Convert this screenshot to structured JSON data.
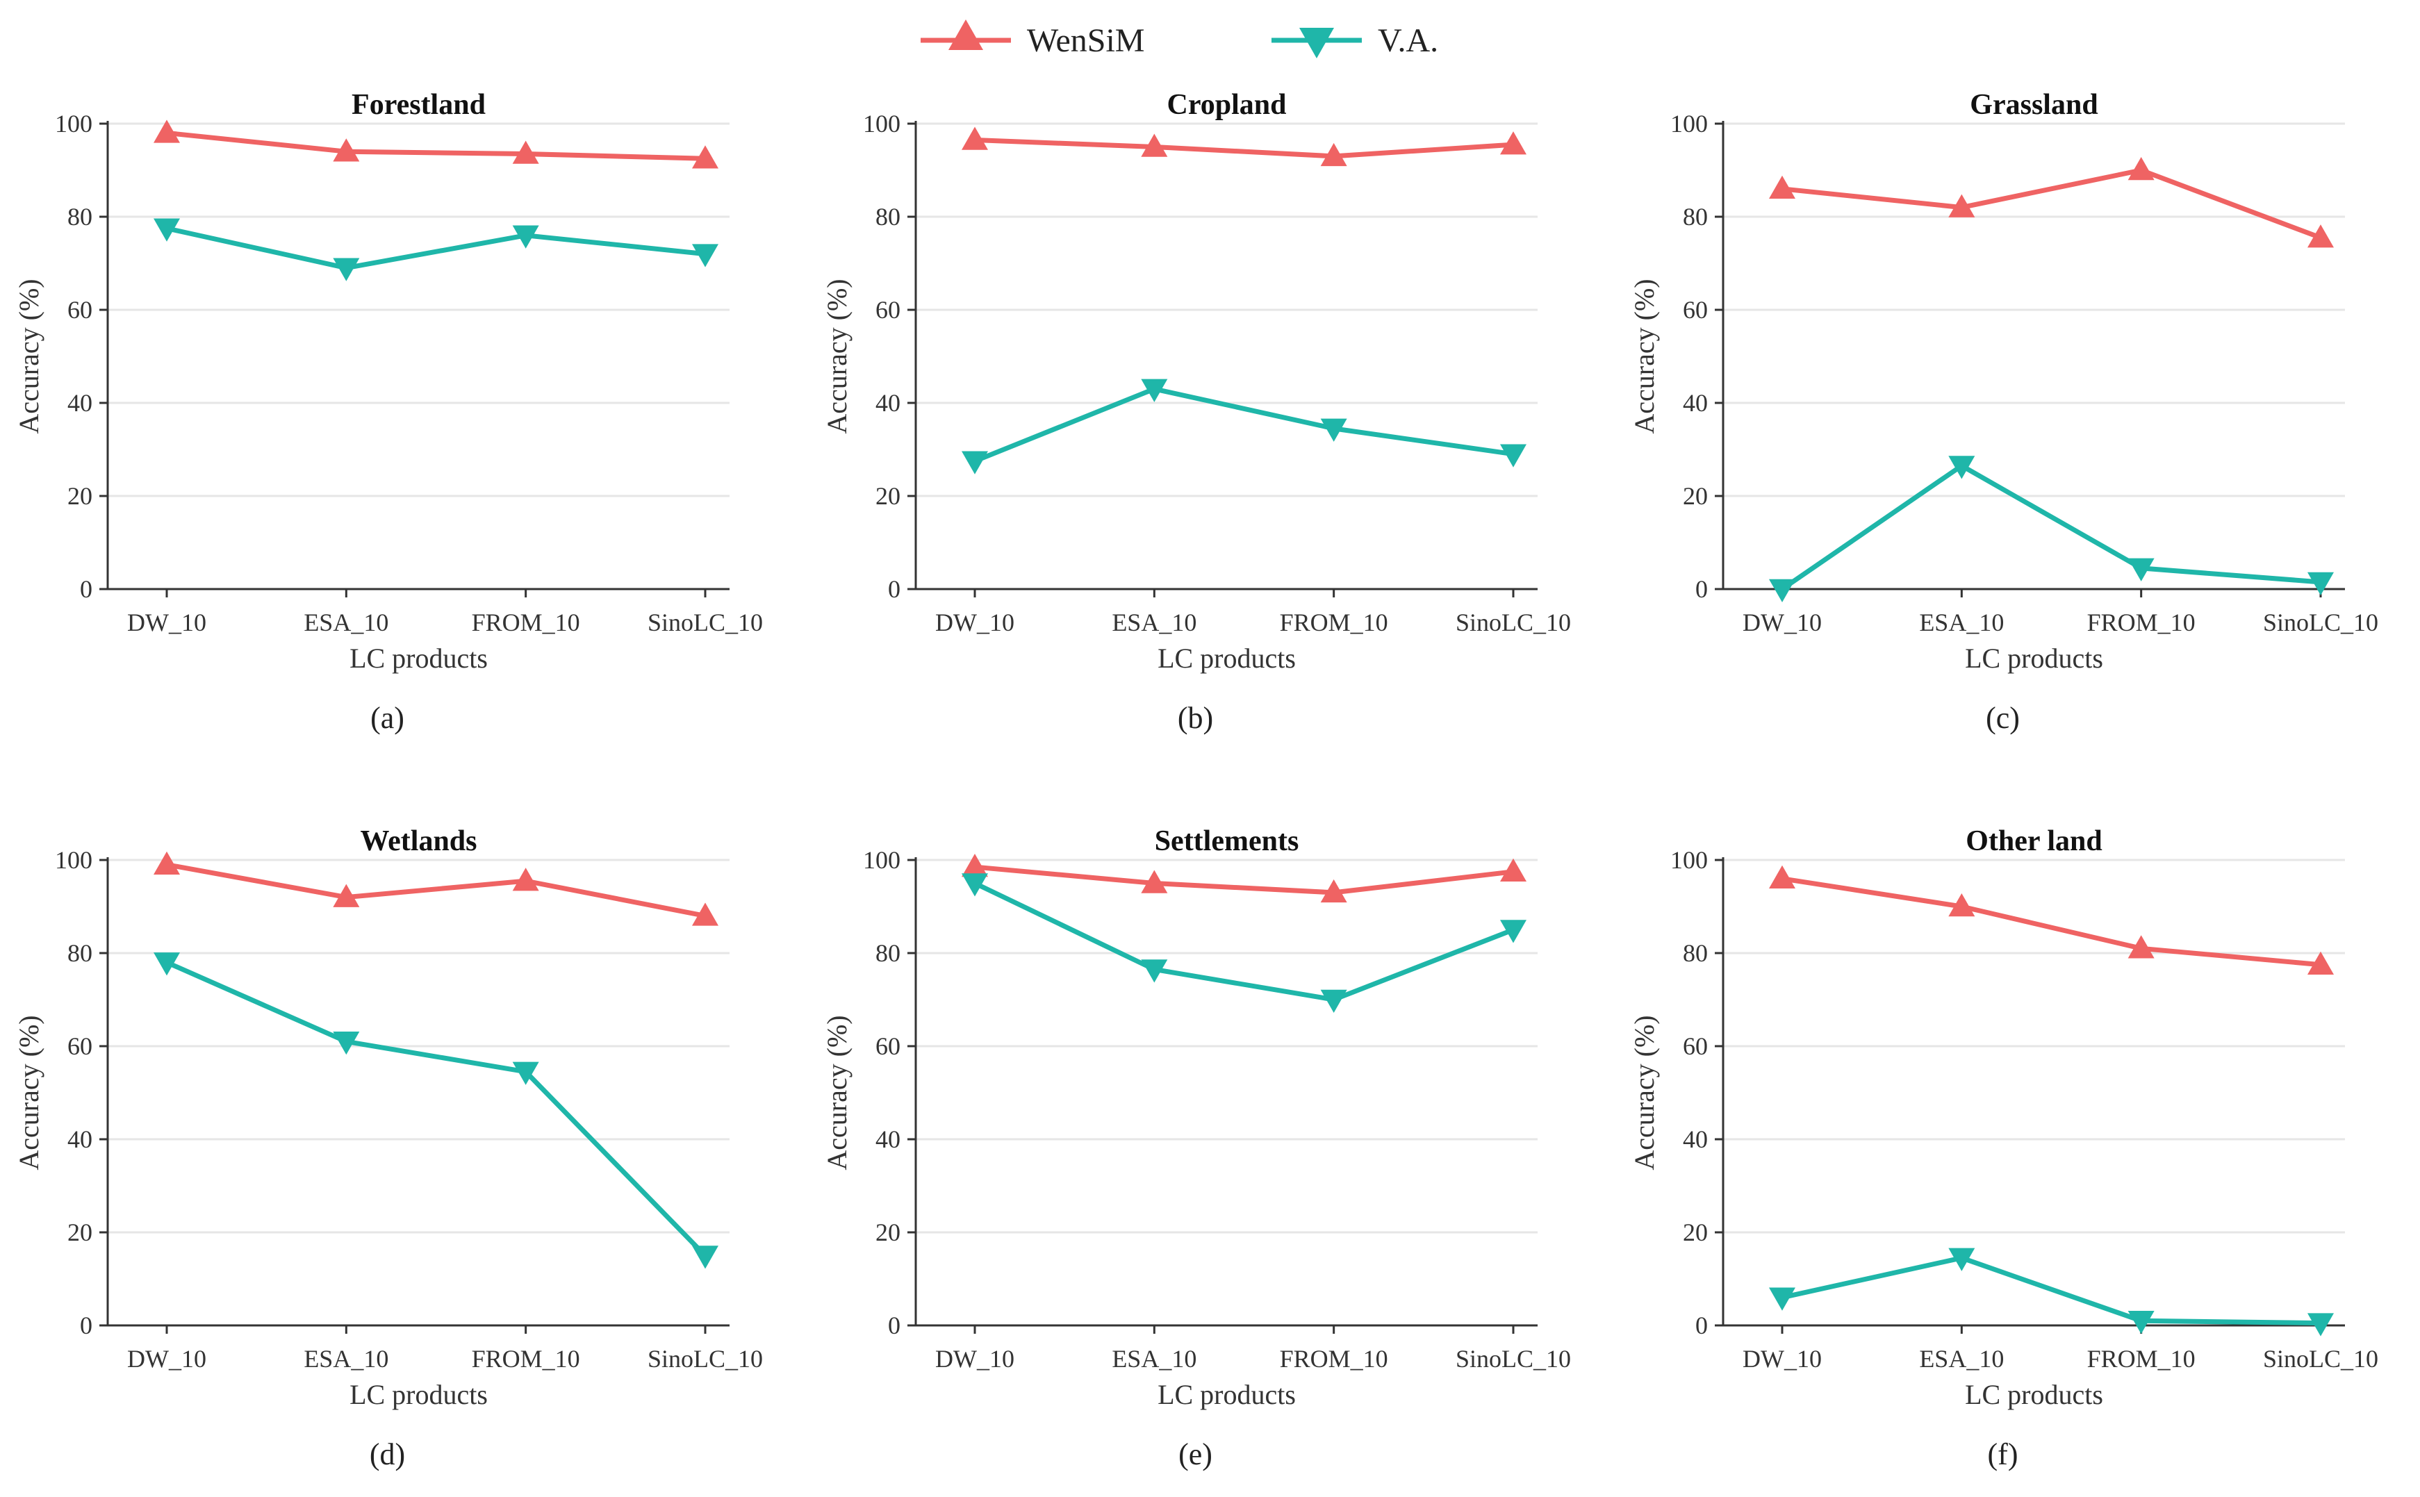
{
  "colors": {
    "wensim": "#EF6363",
    "va": "#1FB6A9"
  },
  "legend": {
    "wensim": "WenSiM",
    "va": "V.A."
  },
  "chart_data": [
    {
      "type": "line",
      "title": "Forestland",
      "caption": "(a)",
      "categories": [
        "DW_10",
        "ESA_10",
        "FROM_10",
        "SinoLC_10"
      ],
      "xlabel": "LC products",
      "ylabel": "Accuracy (%)",
      "ylim": [
        0,
        100
      ],
      "yticks": [
        "0",
        "20",
        "40",
        "60",
        "80",
        "100"
      ],
      "series": [
        {
          "name": "WenSiM",
          "values": [
            98,
            94,
            93.5,
            92.5
          ]
        },
        {
          "name": "V.A.",
          "values": [
            77.5,
            69,
            76,
            72
          ]
        }
      ]
    },
    {
      "type": "line",
      "title": "Cropland",
      "caption": "(b)",
      "categories": [
        "DW_10",
        "ESA_10",
        "FROM_10",
        "SinoLC_10"
      ],
      "xlabel": "LC products",
      "ylabel": "Accuracy (%)",
      "ylim": [
        0,
        100
      ],
      "yticks": [
        "0",
        "20",
        "40",
        "60",
        "80",
        "100"
      ],
      "series": [
        {
          "name": "WenSiM",
          "values": [
            96.5,
            95,
            93,
            95.5
          ]
        },
        {
          "name": "V.A.",
          "values": [
            27.5,
            43,
            34.5,
            29
          ]
        }
      ]
    },
    {
      "type": "line",
      "title": "Grassland",
      "caption": "(c)",
      "categories": [
        "DW_10",
        "ESA_10",
        "FROM_10",
        "SinoLC_10"
      ],
      "xlabel": "LC products",
      "ylabel": "Accuracy (%)",
      "ylim": [
        0,
        100
      ],
      "yticks": [
        "0",
        "20",
        "40",
        "60",
        "80",
        "100"
      ],
      "series": [
        {
          "name": "WenSiM",
          "values": [
            86,
            82,
            90,
            75.5
          ]
        },
        {
          "name": "V.A.",
          "values": [
            0,
            26.5,
            4.5,
            1.5
          ]
        }
      ]
    },
    {
      "type": "line",
      "title": "Wetlands",
      "caption": "(d)",
      "categories": [
        "DW_10",
        "ESA_10",
        "FROM_10",
        "SinoLC_10"
      ],
      "xlabel": "LC products",
      "ylabel": "Accuracy (%)",
      "ylim": [
        0,
        100
      ],
      "yticks": [
        "0",
        "20",
        "40",
        "60",
        "80",
        "100"
      ],
      "series": [
        {
          "name": "WenSiM",
          "values": [
            99,
            92,
            95.5,
            88
          ]
        },
        {
          "name": "V.A.",
          "values": [
            78,
            61,
            54.5,
            15
          ]
        }
      ]
    },
    {
      "type": "line",
      "title": "Settlements",
      "caption": "(e)",
      "categories": [
        "DW_10",
        "ESA_10",
        "FROM_10",
        "SinoLC_10"
      ],
      "xlabel": "LC products",
      "ylabel": "Accuracy (%)",
      "ylim": [
        0,
        100
      ],
      "yticks": [
        "0",
        "20",
        "40",
        "60",
        "80",
        "100"
      ],
      "series": [
        {
          "name": "WenSiM",
          "values": [
            98.5,
            95,
            93,
            97.5
          ]
        },
        {
          "name": "V.A.",
          "values": [
            95,
            76.5,
            70,
            85
          ]
        }
      ]
    },
    {
      "type": "line",
      "title": "Other land",
      "caption": "(f)",
      "categories": [
        "DW_10",
        "ESA_10",
        "FROM_10",
        "SinoLC_10"
      ],
      "xlabel": "LC products",
      "ylabel": "Accuracy (%)",
      "ylim": [
        0,
        100
      ],
      "yticks": [
        "0",
        "20",
        "40",
        "60",
        "80",
        "100"
      ],
      "series": [
        {
          "name": "WenSiM",
          "values": [
            96,
            90,
            81,
            77.5
          ]
        },
        {
          "name": "V.A.",
          "values": [
            6,
            14.5,
            1,
            0.5
          ]
        }
      ]
    }
  ]
}
